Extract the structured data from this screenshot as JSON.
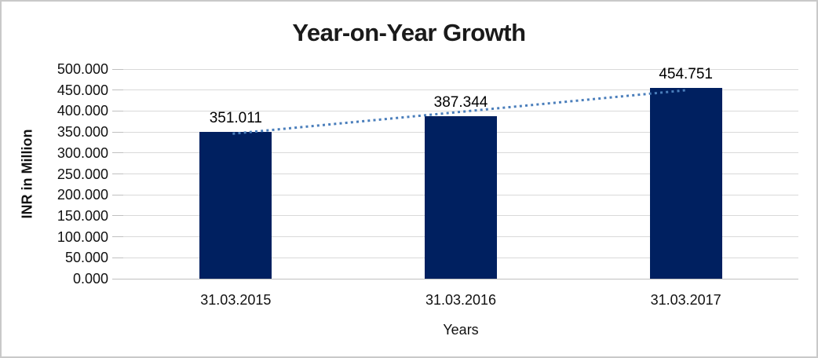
{
  "frame": {
    "background": "#ffffff",
    "border_color": "#c9c9c9"
  },
  "chart_data": {
    "type": "bar",
    "title": "Year-on-Year Growth",
    "xlabel": "Years",
    "ylabel": "INR in Million",
    "categories": [
      "31.03.2015",
      "31.03.2016",
      "31.03.2017"
    ],
    "values": [
      351.011,
      387.344,
      454.751
    ],
    "data_labels": [
      "351.011",
      "387.344",
      "454.751"
    ],
    "ylim": [
      0,
      500
    ],
    "ytick_step": 50,
    "ytick_labels_top_to_bottom": [
      "500.000",
      "450.000",
      "400.000",
      "350.000",
      "300.000",
      "250.000",
      "200.000",
      "150.000",
      "100.000",
      "50.000",
      "0.000"
    ],
    "grid": true,
    "legend": "none",
    "colors": {
      "bar": "#002060",
      "gridline": "#d9d9d9",
      "axis_line": "#c0c0c0",
      "tick_mark": "#c0c0c0",
      "text": "#111111",
      "trendline": "#4a7ebb"
    },
    "trendline": {
      "type": "linear",
      "style": "dotted"
    }
  }
}
